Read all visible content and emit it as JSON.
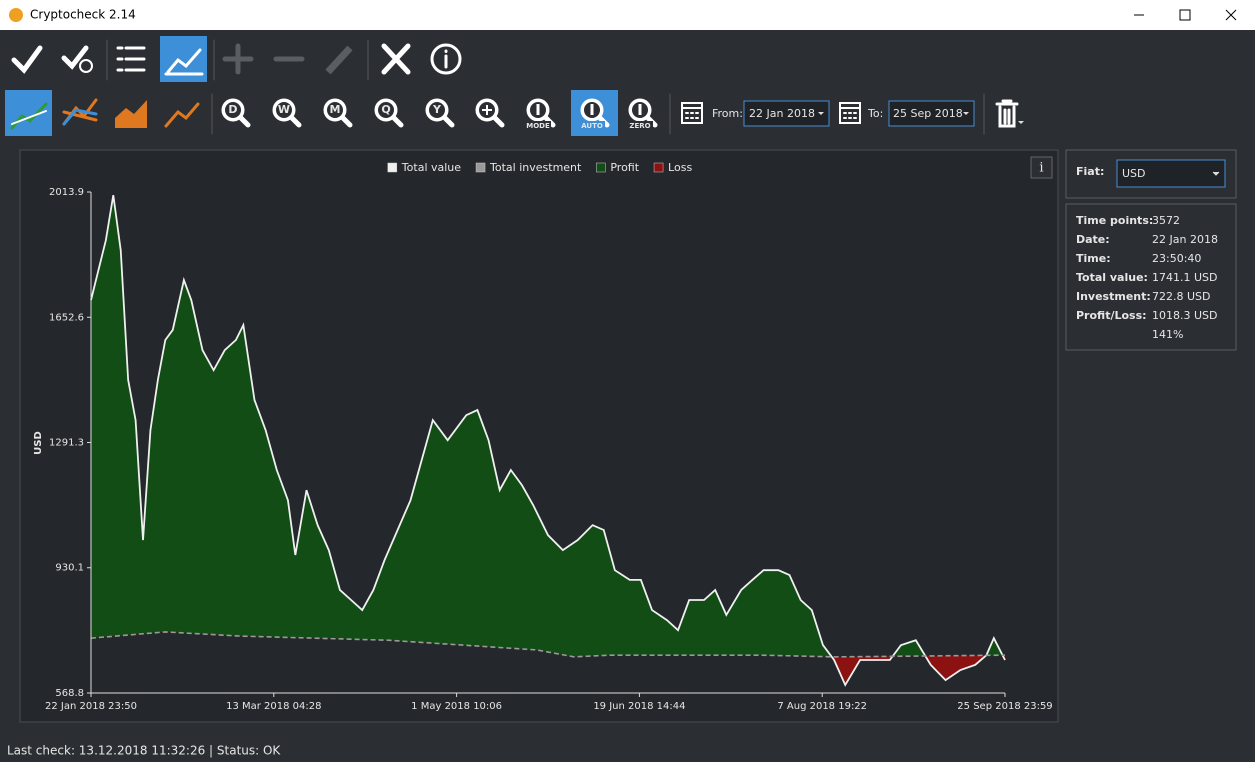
{
  "window": {
    "title": "Cryptocheck 2.14"
  },
  "toolbar": {
    "zoom_buttons": [
      "D",
      "W",
      "M",
      "Q",
      "Y"
    ],
    "mode_label": "MODE",
    "auto_label": "AUTO",
    "zero_label": "ZERO",
    "from_label": "From:",
    "from_date": "22 Jan 2018",
    "to_label": "To:",
    "to_date": "25 Sep 2018"
  },
  "chart_data": {
    "type": "area",
    "y_label": "USD",
    "info_button": "i",
    "xlim": [
      0,
      246
    ],
    "xticks": [
      {
        "value": 0,
        "label": "22 Jan 2018 23:50"
      },
      {
        "value": 49.2,
        "label": "13 Mar 2018 04:28"
      },
      {
        "value": 98.4,
        "label": "1 May 2018 10:06"
      },
      {
        "value": 147.6,
        "label": "19 Jun 2018 14:44"
      },
      {
        "value": 196.8,
        "label": "7 Aug 2018 19:22"
      },
      {
        "value": 246,
        "label": "25 Sep 2018 23:59"
      }
    ],
    "ylim": [
      568.8,
      2013.9
    ],
    "yticks": [
      568.8,
      930.1,
      1291.3,
      1652.6,
      2013.9
    ],
    "series": [
      {
        "name": "Total value",
        "color": "#f0f0f0",
        "x": [
          0,
          4,
          6,
          8,
          10,
          12,
          14,
          16,
          18,
          20,
          22,
          25,
          27,
          30,
          33,
          36,
          39,
          41,
          44,
          47,
          50,
          53,
          55,
          58,
          61,
          64,
          67,
          70,
          73,
          76,
          79,
          86,
          92,
          96,
          101,
          104,
          107,
          110,
          113,
          116,
          119,
          123,
          127,
          131,
          135,
          138,
          141,
          145,
          148,
          151,
          155,
          158,
          161,
          165,
          168,
          171,
          175,
          178,
          181,
          185,
          188,
          191,
          194,
          197,
          200,
          203,
          207,
          211,
          215,
          218,
          222,
          226,
          230,
          234,
          238,
          241,
          243,
          246
        ],
        "values": [
          1702,
          1875,
          2005,
          1846,
          1472,
          1356,
          1010,
          1327,
          1472,
          1587,
          1616,
          1760,
          1702,
          1558,
          1500,
          1558,
          1587,
          1630,
          1414,
          1327,
          1212,
          1125,
          967,
          1154,
          1053,
          981,
          866,
          837,
          808,
          866,
          952,
          1125,
          1356,
          1298,
          1370,
          1385,
          1298,
          1154,
          1212,
          1168,
          1111,
          1024,
          981,
          1010,
          1053,
          1039,
          923,
          895,
          895,
          808,
          779,
          750,
          837,
          837,
          866,
          794,
          866,
          895,
          923,
          923,
          909,
          837,
          808,
          707,
          664,
          592,
          664,
          664,
          664,
          707,
          721,
          650,
          606,
          635,
          650,
          678,
          727,
          664
        ]
      },
      {
        "name": "Total investment",
        "color": "#9a9a9a",
        "x": [
          0,
          20,
          40,
          60,
          80,
          100,
          120,
          130,
          140,
          160,
          180,
          200,
          220,
          246
        ],
        "values": [
          727,
          745,
          733,
          727,
          721,
          707,
          693,
          673,
          678,
          678,
          678,
          673,
          675,
          678
        ]
      }
    ],
    "fills": [
      {
        "name": "Profit",
        "color": "#114d15"
      },
      {
        "name": "Loss",
        "color": "#8c1212"
      }
    ]
  },
  "side_panel": {
    "fiat_label": "Fiat:",
    "fiat_value": "USD",
    "info": [
      {
        "label": "Time points:",
        "value": "3572"
      },
      {
        "label": "Date:",
        "value": "22 Jan 2018"
      },
      {
        "label": "Time:",
        "value": "23:50:40"
      },
      {
        "label": "Total value:",
        "value": "1741.1 USD"
      },
      {
        "label": "Investment:",
        "value": "722.8 USD"
      },
      {
        "label": "Profit/Loss:",
        "value": "1018.3 USD"
      },
      {
        "value": "141%"
      }
    ]
  },
  "status": {
    "text": "Last check: 13.12.2018 11:32:26  |  Status: OK"
  }
}
